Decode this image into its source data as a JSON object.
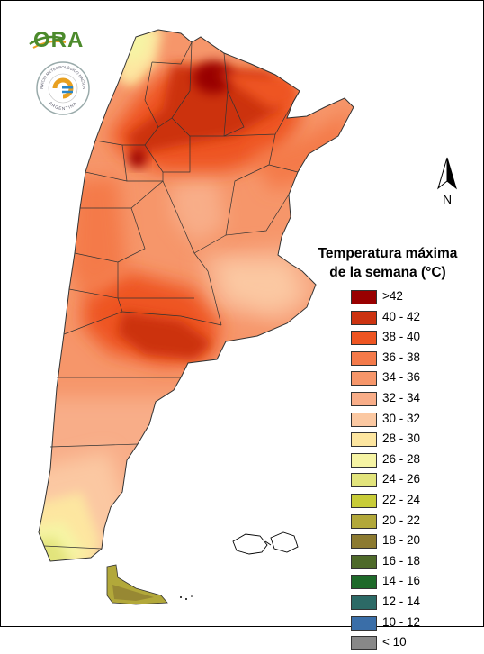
{
  "logos": {
    "ora_text": "ORA",
    "seal_top_text": "SERVICIO METEOROLÓGICO NACIONAL",
    "seal_bottom_text": "ARGENTINA"
  },
  "north_arrow": {
    "label": "N"
  },
  "legend": {
    "title_line1": "Temperatura máxima",
    "title_line2": "de la semana (°C)",
    "items": [
      {
        "label": ">42",
        "color": "#990000"
      },
      {
        "label": "40 - 42",
        "color": "#cc3311"
      },
      {
        "label": "38 - 40",
        "color": "#ee5522"
      },
      {
        "label": "36 - 38",
        "color": "#f47a4a"
      },
      {
        "label": "34 - 36",
        "color": "#f6966a"
      },
      {
        "label": "32 - 34",
        "color": "#f8ad88"
      },
      {
        "label": "30 - 32",
        "color": "#fbc8a2"
      },
      {
        "label": "28 - 30",
        "color": "#fde6a0"
      },
      {
        "label": "26 - 28",
        "color": "#f6f4a4"
      },
      {
        "label": "24 - 26",
        "color": "#e2e47c"
      },
      {
        "label": "22 - 24",
        "color": "#c8cc38"
      },
      {
        "label": "20 - 22",
        "color": "#b2a83a"
      },
      {
        "label": "18 - 20",
        "color": "#8c7a30"
      },
      {
        "label": "16 - 18",
        "color": "#4e6a2a"
      },
      {
        "label": "14 - 16",
        "color": "#1e6a2a"
      },
      {
        "label": "12 - 14",
        "color": "#2c6a66"
      },
      {
        "label": "10 - 12",
        "color": "#3a6ea8"
      },
      {
        "label": "< 10",
        "color": "#888888"
      }
    ]
  }
}
